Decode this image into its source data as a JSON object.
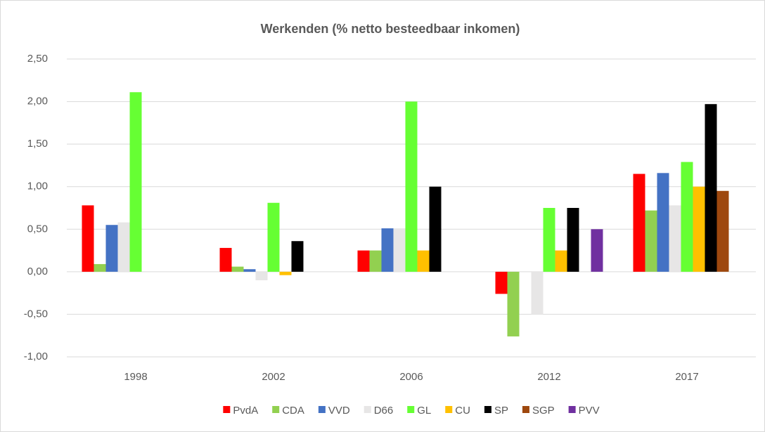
{
  "chart_data": {
    "type": "bar",
    "title": "Werkenden (% netto besteedbaar inkomen)",
    "categories": [
      "1998",
      "2002",
      "2006",
      "2012",
      "2017"
    ],
    "series": [
      {
        "name": "PvdA",
        "color": "#ff0000",
        "values": [
          0.78,
          0.28,
          0.25,
          -0.26,
          1.15
        ]
      },
      {
        "name": "CDA",
        "color": "#92d050",
        "values": [
          0.09,
          0.06,
          0.25,
          -0.76,
          0.72
        ]
      },
      {
        "name": "VVD",
        "color": "#4472c4",
        "values": [
          0.55,
          0.03,
          0.51,
          null,
          1.16
        ]
      },
      {
        "name": "D66",
        "color": "#e7e6e6",
        "values": [
          0.58,
          -0.1,
          0.51,
          -0.5,
          0.78
        ]
      },
      {
        "name": "GL",
        "color": "#66ff33",
        "values": [
          2.11,
          0.81,
          2.0,
          0.75,
          1.29
        ]
      },
      {
        "name": "CU",
        "color": "#ffc000",
        "values": [
          null,
          -0.04,
          0.25,
          0.25,
          1.0
        ]
      },
      {
        "name": "SP",
        "color": "#000000",
        "values": [
          null,
          0.36,
          1.0,
          0.75,
          1.97
        ]
      },
      {
        "name": "SGP",
        "color": "#9e480e",
        "values": [
          null,
          null,
          null,
          null,
          0.95
        ]
      },
      {
        "name": "PVV",
        "color": "#7030a0",
        "values": [
          null,
          null,
          null,
          0.5,
          null
        ]
      }
    ],
    "ylim": [
      -1,
      2.5
    ],
    "yticks": [
      {
        "value": -1,
        "label": "-1,00"
      },
      {
        "value": -0.5,
        "label": "-0,50"
      },
      {
        "value": 0,
        "label": "0,00"
      },
      {
        "value": 0.5,
        "label": "0,50"
      },
      {
        "value": 1,
        "label": "1,00"
      },
      {
        "value": 1.5,
        "label": "1,50"
      },
      {
        "value": 2,
        "label": "2,00"
      },
      {
        "value": 2.5,
        "label": "2,50"
      }
    ],
    "grid": true,
    "legend": "bottom"
  }
}
